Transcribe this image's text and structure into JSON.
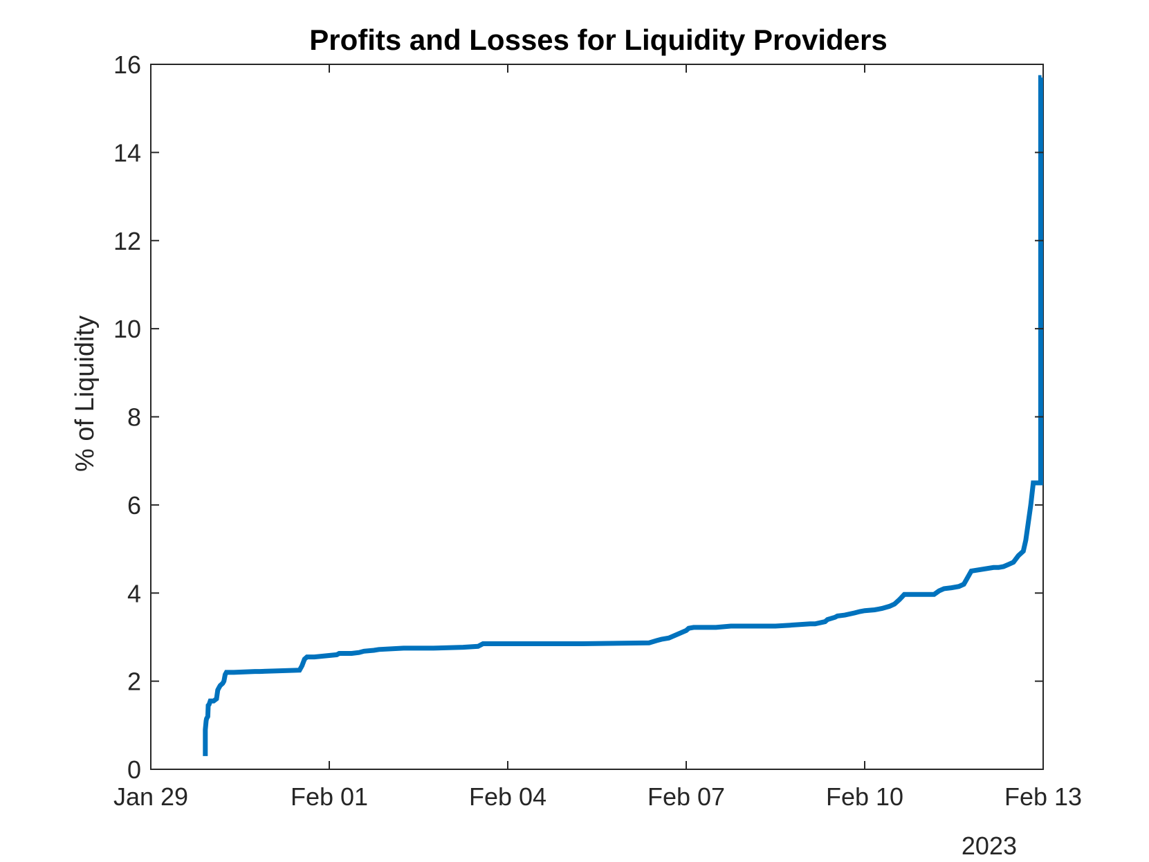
{
  "chart_data": {
    "type": "line",
    "title": "Profits and Losses for Liquidity Providers",
    "xlabel": "",
    "ylabel": "% of Liquidity",
    "year_label": "2023",
    "x_axis": {
      "type": "date",
      "range": [
        "2023-01-29",
        "2023-02-13"
      ],
      "tick_values": [
        "2023-01-29",
        "2023-02-01",
        "2023-02-04",
        "2023-02-07",
        "2023-02-10",
        "2023-02-13"
      ],
      "tick_labels": [
        "Jan 29",
        "Feb 01",
        "Feb 04",
        "Feb 07",
        "Feb 10",
        "Feb 13"
      ]
    },
    "y_axis": {
      "range": [
        0,
        16
      ],
      "tick_values": [
        0,
        2,
        4,
        6,
        8,
        10,
        12,
        14,
        16
      ],
      "tick_labels": [
        "0",
        "2",
        "4",
        "6",
        "8",
        "10",
        "12",
        "14",
        "16"
      ]
    },
    "grid": false,
    "line_color": "#0072BD",
    "series": [
      {
        "x": [
          "2023-01-29T22:00",
          "2023-01-29T22:00",
          "2023-01-29T22:10",
          "2023-01-29T22:20",
          "2023-01-29T22:30",
          "2023-01-29T23:00",
          "2023-01-29T23:10",
          "2023-01-29T23:30",
          "2023-01-30T00:00",
          "2023-01-30T00:20",
          "2023-01-30T01:00",
          "2023-01-30T01:20",
          "2023-01-30T02:30",
          "2023-01-30T03:00",
          "2023-01-30T03:30",
          "2023-01-30T04:00",
          "2023-01-30T05:00",
          "2023-01-30T05:30",
          "2023-01-30T06:00",
          "2023-01-30T06:30",
          "2023-01-30T09:00",
          "2023-01-30T09:30",
          "2023-01-30T18:00",
          "2023-01-30T19:30",
          "2023-01-30T20:00",
          "2023-01-31T12:00",
          "2023-01-31T13:00",
          "2023-01-31T14:00",
          "2023-01-31T15:00",
          "2023-01-31T18:00",
          "2023-02-01T03:00",
          "2023-02-01T04:00",
          "2023-02-01T09:00",
          "2023-02-01T12:00",
          "2023-02-01T14:00",
          "2023-02-01T18:00",
          "2023-02-01T20:00",
          "2023-02-02T06:00",
          "2023-02-02T18:00",
          "2023-02-03T06:00",
          "2023-02-03T12:00",
          "2023-02-03T14:00",
          "2023-02-05T06:00",
          "2023-02-06T09:00",
          "2023-02-06T12:00",
          "2023-02-06T14:00",
          "2023-02-06T17:00",
          "2023-02-07T00:00",
          "2023-02-07T01:00",
          "2023-02-07T03:00",
          "2023-02-07T12:00",
          "2023-02-07T18:00",
          "2023-02-08T06:00",
          "2023-02-08T12:00",
          "2023-02-08T18:00",
          "2023-02-09T02:00",
          "2023-02-09T04:00",
          "2023-02-09T08:00",
          "2023-02-09T09:00",
          "2023-02-09T12:00",
          "2023-02-09T13:00",
          "2023-02-09T16:00",
          "2023-02-09T20:00",
          "2023-02-09T22:00",
          "2023-02-10T00:00",
          "2023-02-10T04:00",
          "2023-02-10T07:00",
          "2023-02-10T10:00",
          "2023-02-10T12:00",
          "2023-02-10T14:00",
          "2023-02-10T16:00",
          "2023-02-11T04:00",
          "2023-02-11T06:00",
          "2023-02-11T08:00",
          "2023-02-11T11:00",
          "2023-02-11T14:00",
          "2023-02-11T16:00",
          "2023-02-11T19:00",
          "2023-02-12T04:00",
          "2023-02-12T06:00",
          "2023-02-12T08:00",
          "2023-02-12T10:00",
          "2023-02-12T12:00",
          "2023-02-12T14:00",
          "2023-02-12T16:00",
          "2023-02-12T17:00",
          "2023-02-12T18:00",
          "2023-02-12T19:00",
          "2023-02-12T20:00",
          "2023-02-12T21:00",
          "2023-02-12T23:00",
          "2023-02-12T23:00",
          "2023-02-12T23:10",
          "2023-02-12T23:20"
        ],
        "values": [
          0.3,
          0.9,
          1.0,
          1.1,
          1.15,
          1.2,
          1.45,
          1.47,
          1.55,
          1.55,
          1.55,
          1.55,
          1.6,
          1.8,
          1.85,
          1.9,
          1.95,
          2.0,
          2.15,
          2.2,
          2.2,
          2.2,
          2.22,
          2.22,
          2.22,
          2.25,
          2.35,
          2.5,
          2.55,
          2.55,
          2.6,
          2.63,
          2.63,
          2.65,
          2.68,
          2.7,
          2.72,
          2.75,
          2.75,
          2.77,
          2.79,
          2.85,
          2.85,
          2.87,
          2.92,
          2.95,
          2.98,
          3.15,
          3.2,
          3.22,
          3.22,
          3.25,
          3.25,
          3.25,
          3.27,
          3.3,
          3.3,
          3.35,
          3.4,
          3.45,
          3.48,
          3.5,
          3.55,
          3.58,
          3.6,
          3.62,
          3.65,
          3.7,
          3.75,
          3.85,
          3.97,
          3.97,
          4.05,
          4.1,
          4.12,
          4.15,
          4.2,
          4.5,
          4.58,
          4.58,
          4.6,
          4.65,
          4.7,
          4.85,
          4.95,
          5.2,
          5.6,
          6.0,
          6.5,
          6.5,
          6.5,
          15.7,
          15.7,
          15.7
        ]
      }
    ]
  }
}
